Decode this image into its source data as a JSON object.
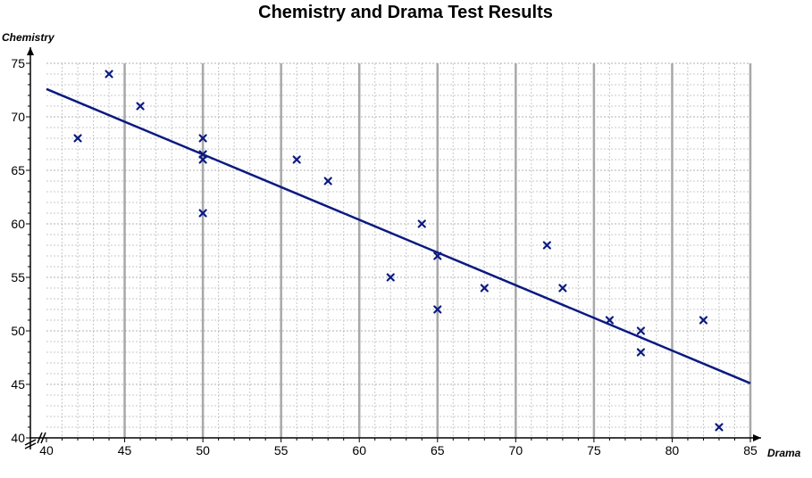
{
  "chart_data": {
    "type": "scatter",
    "title": "Chemistry and Drama Test Results",
    "xlabel": "Drama",
    "ylabel": "Chemistry",
    "xlim": [
      40,
      85
    ],
    "ylim": [
      40,
      75
    ],
    "x_ticks": [
      40,
      45,
      50,
      55,
      60,
      65,
      70,
      75,
      80,
      85
    ],
    "y_ticks": [
      40,
      45,
      50,
      55,
      60,
      65,
      70,
      75
    ],
    "grid": true,
    "axis_breaks": true,
    "marker": "x",
    "colors": {
      "series": "#0b1a80",
      "grid": "#c8c8c8",
      "major_grid": "#a8a8a8"
    },
    "series": [
      {
        "points": [
          {
            "x": 42,
            "y": 68
          },
          {
            "x": 44,
            "y": 74
          },
          {
            "x": 46,
            "y": 71
          },
          {
            "x": 50,
            "y": 68
          },
          {
            "x": 50,
            "y": 66
          },
          {
            "x": 50,
            "y": 66.5
          },
          {
            "x": 50,
            "y": 61
          },
          {
            "x": 56,
            "y": 66
          },
          {
            "x": 58,
            "y": 64
          },
          {
            "x": 62,
            "y": 55
          },
          {
            "x": 64,
            "y": 60
          },
          {
            "x": 65,
            "y": 57
          },
          {
            "x": 65,
            "y": 52
          },
          {
            "x": 68,
            "y": 54
          },
          {
            "x": 72,
            "y": 58
          },
          {
            "x": 73,
            "y": 54
          },
          {
            "x": 76,
            "y": 51
          },
          {
            "x": 78,
            "y": 50
          },
          {
            "x": 78,
            "y": 48
          },
          {
            "x": 82,
            "y": 51
          },
          {
            "x": 83,
            "y": 41
          }
        ]
      }
    ],
    "trendline": {
      "x": [
        40,
        85
      ],
      "y": [
        72.6,
        45.1
      ]
    }
  }
}
